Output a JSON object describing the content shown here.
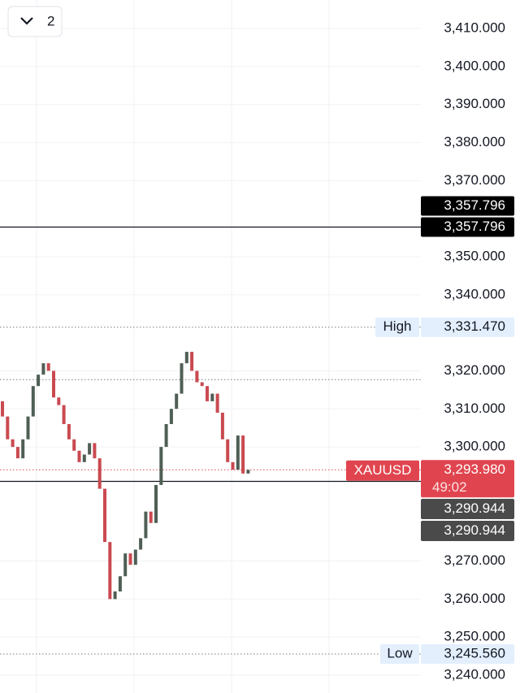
{
  "interval_button": "2",
  "chart_data": {
    "type": "candlestick",
    "up_color": "#4f5f55",
    "down_color": "#c94a50",
    "open": [
      3312,
      3308,
      3302,
      3300,
      3297,
      3302,
      3308,
      3316,
      3319,
      3322,
      3320,
      3313,
      3311,
      3306,
      3302,
      3299,
      3296,
      3298,
      3301,
      3297,
      3289,
      3275,
      3260,
      3262,
      3266,
      3272,
      3269,
      3273,
      3276,
      3283,
      3280,
      3290,
      3300,
      3306,
      3310,
      3314,
      3322,
      3325,
      3320,
      3317,
      3316,
      3312,
      3314,
      3309,
      3302,
      3296,
      3294,
      3303,
      3293
    ],
    "high": {
      "value": 3331.47,
      "name": "High",
      "label": "3,331.470"
    },
    "low": {
      "value": 3245.56,
      "name": "Low",
      "label": "3,245.560"
    },
    "close": [
      3308,
      3302,
      3300,
      3297,
      3302,
      3308,
      3316,
      3319,
      3322,
      3320,
      3313,
      3311,
      3306,
      3302,
      3299,
      3296,
      3298,
      3301,
      3297,
      3289,
      3275,
      3260,
      3262,
      3266,
      3272,
      3269,
      3273,
      3276,
      3283,
      3280,
      3290,
      3300,
      3306,
      3310,
      3314,
      3322,
      3325,
      3320,
      3317,
      3316,
      3312,
      3314,
      3309,
      3302,
      3296,
      3294,
      3303,
      3293,
      3293.98
    ],
    "ylim": [
      3235.3,
      3417.5
    ],
    "yticks": [
      {
        "value": 3410,
        "label": "3,410.000"
      },
      {
        "value": 3400,
        "label": "3,400.000"
      },
      {
        "value": 3390,
        "label": "3,390.000"
      },
      {
        "value": 3380,
        "label": "3,380.000"
      },
      {
        "value": 3370,
        "label": "3,370.000"
      },
      {
        "value": 3350,
        "label": "3,350.000"
      },
      {
        "value": 3340,
        "label": "3,340.000"
      },
      {
        "value": 3320,
        "label": "3,320.000"
      },
      {
        "value": 3310,
        "label": "3,310.000"
      },
      {
        "value": 3300,
        "label": "3,300.000"
      },
      {
        "value": 3270,
        "label": "3,270.000"
      },
      {
        "value": 3260,
        "label": "3,260.000"
      },
      {
        "value": 3250,
        "label": "3,250.000"
      },
      {
        "value": 3240,
        "label": "3,240.000"
      }
    ],
    "grid": true,
    "reference_line": 3317.7,
    "position_line": {
      "value": 3357.796,
      "label_top": "3,357.796",
      "label_bottom": "3,357.796"
    },
    "entry_line": {
      "value": 3290.944,
      "label_top": "3,290.944",
      "label_bottom": "3,290.944"
    },
    "last_price": {
      "value": 3293.98,
      "symbol": "XAUUSD",
      "label": "3,293.980",
      "countdown": "49:02"
    }
  }
}
